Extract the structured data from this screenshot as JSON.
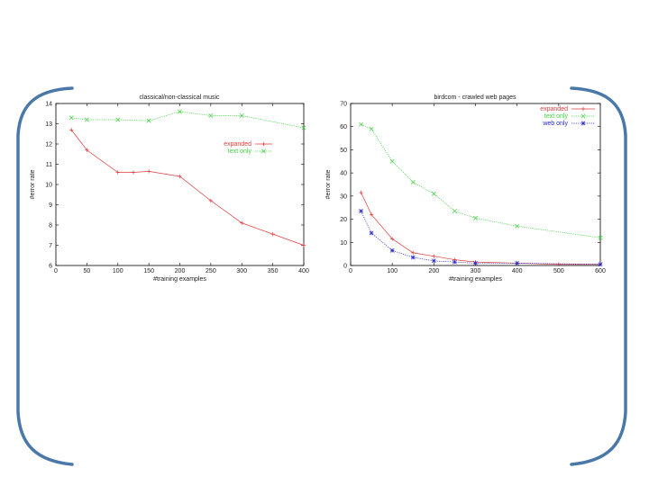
{
  "chart_data": [
    {
      "type": "line",
      "title": "classical/non-classical music",
      "xlabel": "#training examples",
      "ylabel": "#error rate",
      "xlim": [
        0,
        400
      ],
      "ylim": [
        6,
        14
      ],
      "xticks": [
        0,
        50,
        100,
        150,
        200,
        250,
        300,
        350,
        400
      ],
      "yticks": [
        6,
        7,
        8,
        9,
        10,
        11,
        12,
        13,
        14
      ],
      "legend_position": "right-upper",
      "series": [
        {
          "name": "expanded",
          "color": "#e03c3c",
          "dash": "solid",
          "marker": "plus",
          "x": [
            25,
            50,
            100,
            125,
            150,
            200,
            250,
            300,
            350,
            400
          ],
          "y": [
            12.7,
            11.7,
            10.6,
            10.6,
            10.65,
            10.4,
            9.2,
            8.1,
            7.55,
            7.0
          ]
        },
        {
          "name": "text only",
          "color": "#3cd23c",
          "dash": "dotted",
          "marker": "x",
          "x": [
            25,
            50,
            100,
            150,
            200,
            250,
            300,
            400
          ],
          "y": [
            13.3,
            13.2,
            13.2,
            13.15,
            13.6,
            13.4,
            13.4,
            12.8
          ]
        }
      ]
    },
    {
      "type": "line",
      "title": "birdcom - crawled web pages",
      "xlabel": "#training examples",
      "ylabel": "#error rate",
      "xlim": [
        0,
        600
      ],
      "ylim": [
        0,
        70
      ],
      "xticks": [
        0,
        100,
        200,
        300,
        400,
        500,
        600
      ],
      "yticks": [
        0,
        10,
        20,
        30,
        40,
        50,
        60,
        70
      ],
      "legend_position": "top-right",
      "series": [
        {
          "name": "expanded",
          "color": "#e03c3c",
          "dash": "solid",
          "marker": "plus",
          "x": [
            25,
            50,
            100,
            150,
            200,
            250,
            300,
            400,
            500,
            600
          ],
          "y": [
            31.5,
            22,
            11.5,
            5.5,
            4,
            2.5,
            1.5,
            1,
            0.5,
            0.5
          ]
        },
        {
          "name": "text only",
          "color": "#3cd23c",
          "dash": "dotted",
          "marker": "x",
          "x": [
            25,
            50,
            100,
            150,
            200,
            250,
            300,
            400,
            600
          ],
          "y": [
            61,
            59,
            45,
            36,
            31,
            23.5,
            20.5,
            17,
            12
          ]
        },
        {
          "name": "web only",
          "color": "#2828c8",
          "dash": "dotted",
          "marker": "star",
          "x": [
            25,
            50,
            100,
            150,
            200,
            250,
            300,
            400,
            600
          ],
          "y": [
            23.5,
            14,
            6.5,
            3.5,
            2,
            1.5,
            1,
            1,
            0.5
          ]
        }
      ]
    }
  ],
  "decoration": {
    "bracket_color": "#4a78a8"
  }
}
